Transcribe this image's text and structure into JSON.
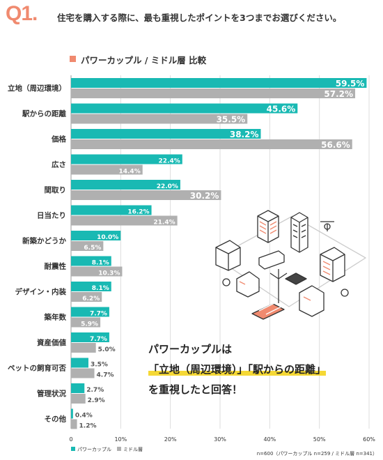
{
  "question": {
    "number": "Q1.",
    "text": "住宅を購入する際に、最も重視したポイントを3つまでお選びください。"
  },
  "legend_title": "パワーカップル / ミドル層 比較",
  "callout": {
    "line1": "パワーカップルは",
    "line2_part1": "「立地（周辺環境）」",
    "line2_part2": "「駅からの距離」",
    "line3": "を重視したと回答！"
  },
  "note": "n=600（パワーカップル n=259 / ミドル層 n=341）",
  "colors": {
    "power_couple": "#19b9b3",
    "middle": "#b0b0b0",
    "accent": "#f08a6f",
    "highlight": "#f5d835"
  },
  "chart_data": {
    "type": "bar",
    "orientation": "horizontal",
    "categories": [
      "立地（周辺環境）",
      "駅からの距離",
      "価格",
      "広さ",
      "間取り",
      "日当たり",
      "新築かどうか",
      "耐震性",
      "デザイン・内装",
      "築年数",
      "資産価値",
      "ペットの飼育可否",
      "管理状況",
      "その他"
    ],
    "series": [
      {
        "name": "パワーカップル",
        "color": "#19b9b3",
        "values": [
          59.5,
          45.6,
          38.2,
          22.4,
          22.0,
          16.2,
          10.0,
          8.1,
          8.1,
          7.7,
          7.7,
          3.5,
          2.7,
          0.4
        ]
      },
      {
        "name": "ミドル層",
        "color": "#b0b0b0",
        "values": [
          57.2,
          35.5,
          56.6,
          14.4,
          30.2,
          21.4,
          6.5,
          10.3,
          6.2,
          5.9,
          5.0,
          4.7,
          2.9,
          1.2
        ]
      }
    ],
    "value_suffix": "%",
    "xlim": [
      0,
      60
    ],
    "xticks": [
      "0",
      "10%",
      "20%",
      "30%",
      "40%",
      "50%",
      "60%"
    ],
    "grid": true,
    "legend_position": "bottom-left"
  }
}
